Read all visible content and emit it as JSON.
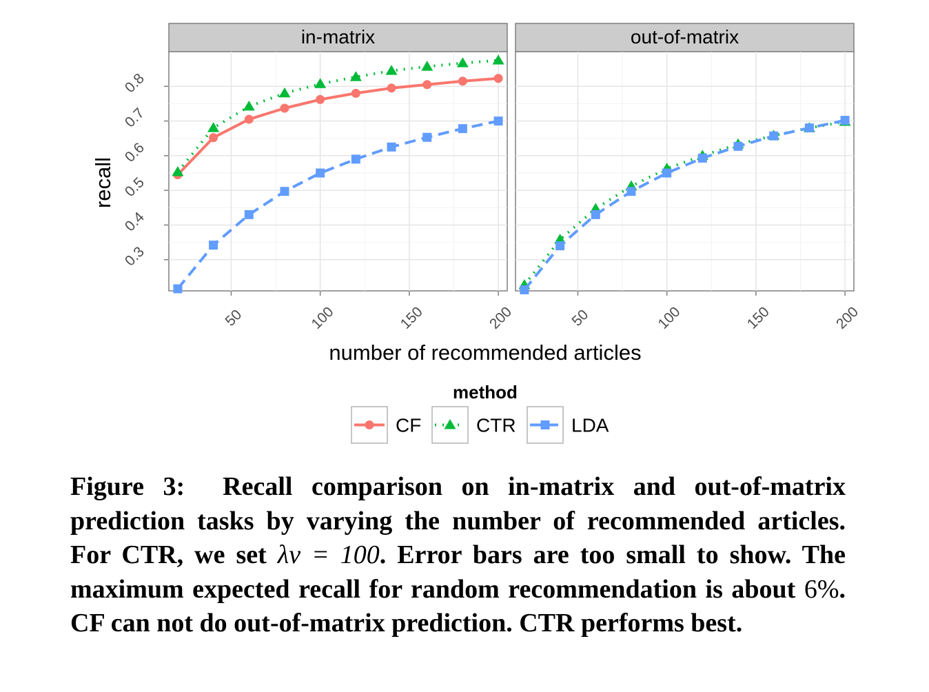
{
  "chart_data": {
    "type": "line",
    "facets": [
      "in-matrix",
      "out-of-matrix"
    ],
    "xlabel": "number of recommended articles",
    "ylabel": "recall",
    "xticks": [
      50,
      100,
      150,
      200
    ],
    "yticks": [
      0.3,
      0.4,
      0.5,
      0.6,
      0.7,
      0.8
    ],
    "xlim": [
      15,
      205
    ],
    "ylim": [
      0.21,
      0.9
    ],
    "grid": true,
    "legend": {
      "title": "method",
      "position": "bottom",
      "entries": [
        "CF",
        "CTR",
        "LDA"
      ]
    },
    "x": [
      20,
      40,
      60,
      80,
      100,
      120,
      140,
      160,
      180,
      200
    ],
    "panels": [
      {
        "facet": "in-matrix",
        "series": [
          {
            "name": "CF",
            "color": "#F8766D",
            "linestyle": "solid",
            "marker": "circle",
            "values": [
              0.545,
              0.652,
              0.705,
              0.737,
              0.762,
              0.78,
              0.795,
              0.805,
              0.815,
              0.823
            ]
          },
          {
            "name": "CTR",
            "color": "#00BA38",
            "linestyle": "dotted",
            "marker": "triangle",
            "values": [
              0.553,
              0.68,
              0.742,
              0.78,
              0.807,
              0.827,
              0.845,
              0.857,
              0.867,
              0.875
            ]
          },
          {
            "name": "LDA",
            "color": "#619CFF",
            "linestyle": "dashed",
            "marker": "square",
            "values": [
              0.216,
              0.342,
              0.43,
              0.497,
              0.55,
              0.59,
              0.625,
              0.653,
              0.678,
              0.7
            ]
          }
        ]
      },
      {
        "facet": "out-of-matrix",
        "series": [
          {
            "name": "CTR",
            "color": "#00BA38",
            "linestyle": "dotted",
            "marker": "triangle",
            "values": [
              0.227,
              0.358,
              0.447,
              0.512,
              0.563,
              0.6,
              0.633,
              0.658,
              0.68,
              0.698
            ]
          },
          {
            "name": "LDA",
            "color": "#619CFF",
            "linestyle": "dashed",
            "marker": "square",
            "values": [
              0.213,
              0.34,
              0.43,
              0.497,
              0.55,
              0.593,
              0.627,
              0.657,
              0.68,
              0.702
            ]
          }
        ]
      }
    ]
  },
  "caption": {
    "label": "Figure 3:",
    "text_before_math": "Recall comparison on in-matrix and out-of-matrix prediction tasks by varying the number of recommended articles. For CTR, we set",
    "math": "λv = 100",
    "text_mid": ". Error bars are too small to show. The maximum expected recall for random recommendation is about",
    "percent": "6%",
    "text_after": ". CF can not do out-of-matrix prediction. CTR performs best."
  }
}
